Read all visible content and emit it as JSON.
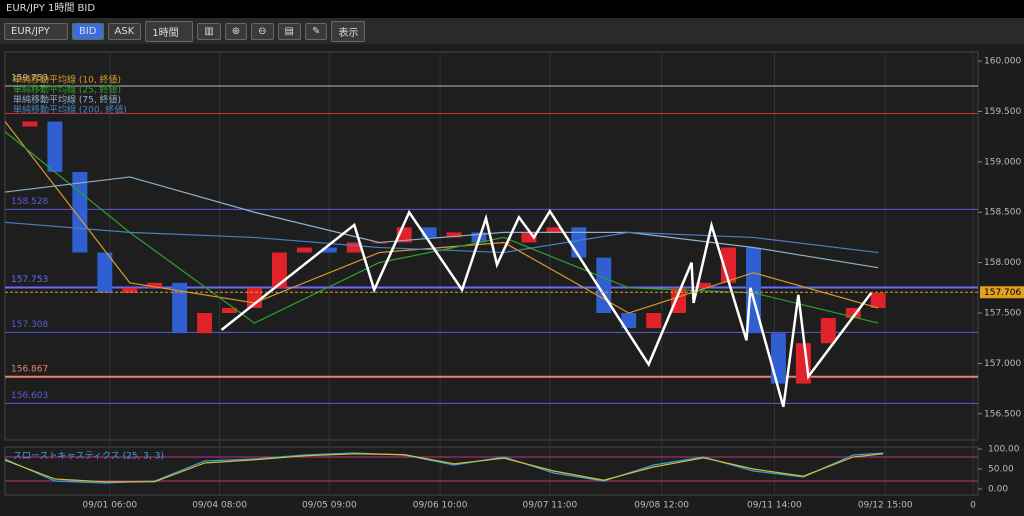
{
  "header": {
    "title": "EUR/JPY 1時間 BID"
  },
  "toolbar": {
    "symbol": "EUR/JPY",
    "bid": "BID",
    "ask": "ASK",
    "period": "1時間",
    "view": "表示"
  },
  "chart_data": {
    "type": "candlestick",
    "ylim": [
      156.24,
      160.09
    ],
    "yticks": [
      {
        "value": 156.5,
        "label": "156.500"
      },
      {
        "value": 157,
        "label": "157.000"
      },
      {
        "value": 157.5,
        "label": "157.500"
      },
      {
        "value": 158,
        "label": "158.000"
      },
      {
        "value": 158.5,
        "label": "158.500"
      },
      {
        "value": 159,
        "label": "159.000"
      },
      {
        "value": 159.5,
        "label": "159.500"
      },
      {
        "value": 160,
        "label": "160.000"
      }
    ],
    "xlim": [
      0,
      195
    ],
    "xticks": [
      {
        "value": 21,
        "label": "09/01 06:00"
      },
      {
        "value": 43,
        "label": "09/04 08:00"
      },
      {
        "value": 65,
        "label": "09/05 09:00"
      },
      {
        "value": 87.2,
        "label": "09/06 10:00"
      },
      {
        "value": 109.2,
        "label": "09/07 11:00"
      },
      {
        "value": 131.6,
        "label": "09/08 12:00"
      },
      {
        "value": 154.2,
        "label": "09/11 14:00"
      },
      {
        "value": 176.4,
        "label": "09/12 15:00"
      },
      {
        "value": 194,
        "label": "0"
      }
    ],
    "candles": {
      "x": [
        0,
        5,
        10,
        15,
        20,
        25,
        30,
        35,
        40,
        45,
        50,
        55,
        60,
        65,
        70,
        75,
        80,
        85,
        90,
        95,
        100,
        105,
        110,
        115,
        120,
        125,
        130,
        135,
        140,
        145,
        150,
        155,
        160,
        165,
        170,
        175
      ],
      "close": [
        159.35,
        159.4,
        158.9,
        158.1,
        157.7,
        157.75,
        157.8,
        157.3,
        157.5,
        157.55,
        157.75,
        158.1,
        158.15,
        158.1,
        158.2,
        158.2,
        158.35,
        158.25,
        158.3,
        158.2,
        158.2,
        158.3,
        158.35,
        158.05,
        157.5,
        157.35,
        157.5,
        157.75,
        157.8,
        158.15,
        157.3,
        156.8,
        157.2,
        157.45,
        157.55,
        157.7
      ],
      "up_color": "#e0222a",
      "down_color": "#2f5fd0"
    },
    "series": [
      {
        "name": "単純移動平均線 (10, 終値)",
        "color": "#d89a2a",
        "x": [
          0,
          25,
          50,
          75,
          100,
          125,
          150,
          175
        ],
        "values": [
          159.4,
          157.8,
          157.6,
          158.1,
          158.2,
          157.5,
          157.9,
          157.55
        ]
      },
      {
        "name": "単純移動平均線 (25, 終値)",
        "color": "#2fa12f",
        "x": [
          0,
          25,
          50,
          75,
          100,
          125,
          150,
          175
        ],
        "values": [
          159.3,
          158.3,
          157.4,
          158,
          158.25,
          157.75,
          157.7,
          157.4
        ]
      },
      {
        "name": "単純移動平均線 (75, 終値)",
        "color": "#8fb0c8",
        "x": [
          0,
          25,
          50,
          75,
          100,
          125,
          150,
          175
        ],
        "values": [
          158.7,
          158.85,
          158.5,
          158.2,
          158.3,
          158.3,
          158.15,
          157.95
        ]
      },
      {
        "name": "単純移動平均線 (200, 終値)",
        "color": "#4a7fc0",
        "x": [
          0,
          25,
          50,
          75,
          100,
          125,
          150,
          175
        ],
        "values": [
          158.4,
          158.3,
          158.25,
          158.15,
          158.1,
          158.3,
          158.25,
          158.1
        ]
      }
    ],
    "zigzag": {
      "color": "#ffffff",
      "x": [
        43.4,
        70,
        74,
        81,
        91.6,
        96.4,
        98.6,
        103,
        106,
        109.2,
        129,
        137.6,
        138,
        141.6,
        148.6,
        149.4,
        156,
        159,
        161,
        173.6
      ],
      "values": [
        157.333,
        158.374,
        157.73,
        158.5,
        157.73,
        158.44,
        157.98,
        158.45,
        158.25,
        158.51,
        156.99,
        158,
        157.6,
        158.37,
        157.23,
        157.75,
        156.57,
        157.68,
        156.87,
        157.7
      ]
    },
    "levels": [
      {
        "value": 159.753,
        "color": "#b8b8b8"
      },
      {
        "value": 158.528,
        "color": "#5a5ad8"
      },
      {
        "value": 157.753,
        "color": "#6a6aff"
      },
      {
        "value": 157.308,
        "color": "#5a5ad8"
      },
      {
        "value": 156.867,
        "color": "#f08070"
      },
      {
        "value": 156.603,
        "color": "#5a5ad8"
      }
    ],
    "lines": [
      {
        "value": 159.48,
        "color": "#c03030"
      }
    ],
    "current": {
      "value": 157.706,
      "color": "#e0a020"
    },
    "stochastic": {
      "title": "スローストキャスティクス (25, 3, 3)",
      "ylim": [
        -15,
        105
      ],
      "yticks": [
        {
          "value": 100,
          "label": "100.00"
        },
        {
          "value": 50,
          "label": "50.00"
        },
        {
          "value": 0,
          "label": "0.00"
        }
      ],
      "bands": [
        80,
        20
      ],
      "band_color": "#c03080",
      "x": [
        0,
        10,
        20,
        30,
        40,
        50,
        60,
        70,
        80,
        90,
        100,
        110,
        120,
        130,
        140,
        150,
        160,
        170,
        176
      ],
      "series": [
        {
          "color": "#3aa0e0",
          "values": [
            75,
            20,
            15,
            20,
            70,
            75,
            85,
            90,
            85,
            60,
            80,
            40,
            20,
            60,
            80,
            45,
            30,
            85,
            90
          ]
        },
        {
          "color": "#d0c030",
          "values": [
            72,
            25,
            18,
            18,
            65,
            73,
            83,
            88,
            86,
            63,
            77,
            45,
            22,
            55,
            78,
            50,
            32,
            80,
            88
          ]
        }
      ]
    }
  }
}
